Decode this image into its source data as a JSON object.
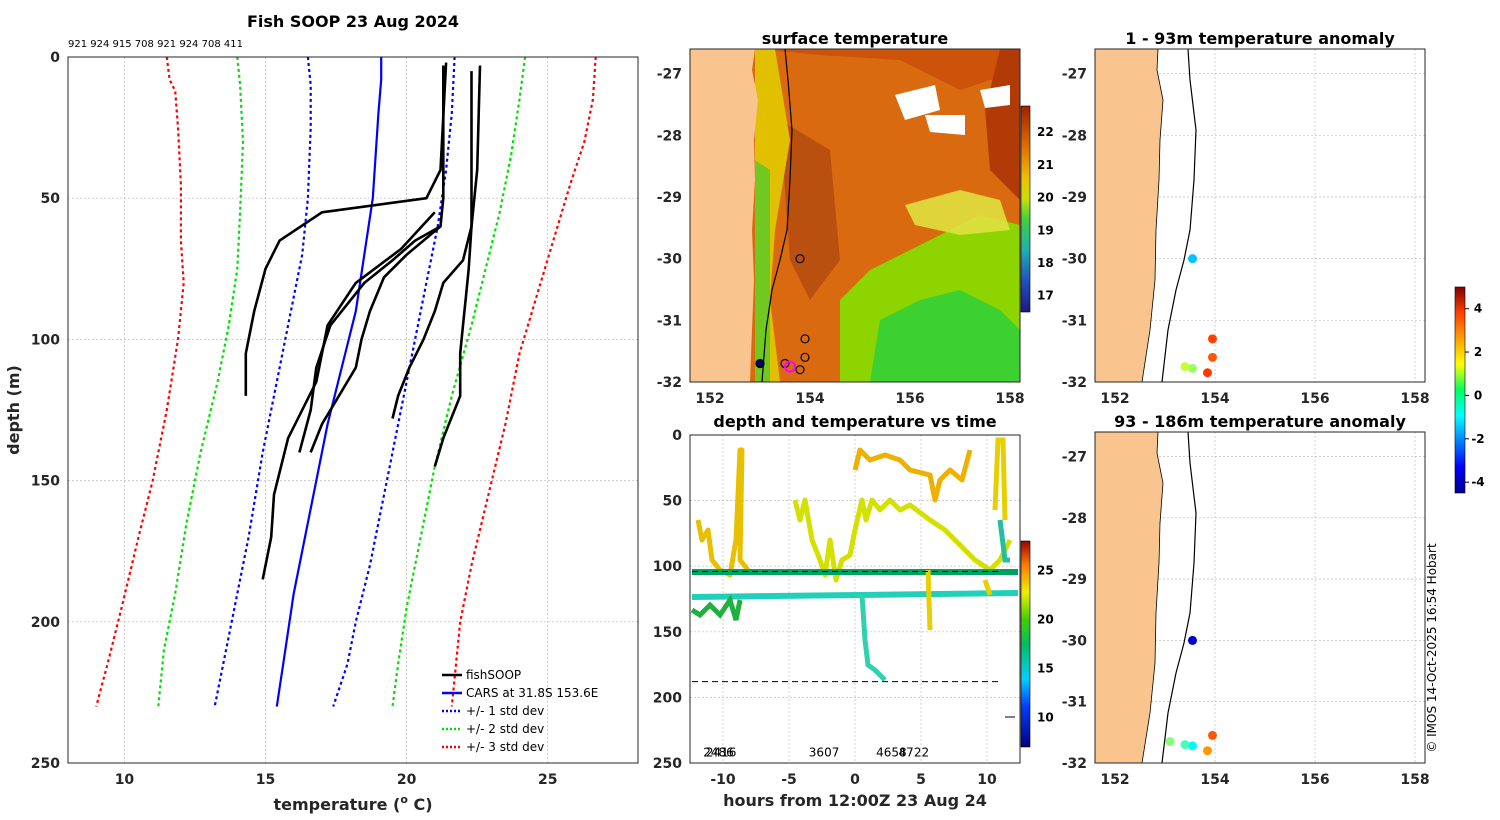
{
  "credit": "© IMOS 14-Oct-2025 16:54 Hobart",
  "chart_data": [
    {
      "id": "profile",
      "type": "line",
      "title": "Fish SOOP 23 Aug 2024",
      "subtitle": "921 924 915 708 921 924 708 411",
      "xlabel": "temperature (",
      "xlabel_sup": "o",
      "xlabel_end": " C)",
      "ylabel": "depth (m)",
      "xlim": [
        8,
        28.2
      ],
      "ylim": [
        0,
        250
      ],
      "xticks": [
        10,
        15,
        20,
        25
      ],
      "yticks": [
        0,
        50,
        100,
        150,
        200,
        250
      ],
      "legend": [
        "fishSOOP",
        "CARS at 31.8S 153.6E",
        "+/- 1 std dev",
        "+/- 2 std dev",
        "+/- 3 std dev"
      ],
      "series": [
        {
          "name": "CARS at 31.8S 153.6E",
          "color": "#0000ff",
          "dash": "",
          "points": [
            [
              19.1,
              0
            ],
            [
              19.1,
              8
            ],
            [
              19.0,
              20
            ],
            [
              18.9,
              35
            ],
            [
              18.8,
              50
            ],
            [
              18.5,
              70
            ],
            [
              18.2,
              90
            ],
            [
              17.7,
              110
            ],
            [
              17.2,
              130
            ],
            [
              16.8,
              150
            ],
            [
              16.4,
              170
            ],
            [
              16.0,
              190
            ],
            [
              15.7,
              210
            ],
            [
              15.4,
              230
            ]
          ]
        },
        {
          "name": "+1 std",
          "color": "#0000ff",
          "dash": "3,3",
          "points": [
            [
              21.7,
              0
            ],
            [
              21.6,
              20
            ],
            [
              21.4,
              40
            ],
            [
              21.1,
              60
            ],
            [
              20.8,
              75
            ],
            [
              20.4,
              95
            ],
            [
              19.9,
              120
            ],
            [
              19.3,
              150
            ],
            [
              18.7,
              180
            ],
            [
              18.2,
              200
            ],
            [
              17.9,
              215
            ],
            [
              17.4,
              230
            ]
          ]
        },
        {
          "name": "-1 std",
          "color": "#0000ff",
          "dash": "3,3",
          "points": [
            [
              16.5,
              0
            ],
            [
              16.6,
              10
            ],
            [
              16.6,
              25
            ],
            [
              16.5,
              50
            ],
            [
              16.3,
              70
            ],
            [
              15.9,
              90
            ],
            [
              15.4,
              115
            ],
            [
              14.9,
              140
            ],
            [
              14.4,
              170
            ],
            [
              13.9,
              195
            ],
            [
              13.5,
              215
            ],
            [
              13.2,
              230
            ]
          ]
        },
        {
          "name": "+2 std",
          "color": "#00e000",
          "dash": "3,3",
          "points": [
            [
              24.2,
              0
            ],
            [
              24.0,
              15
            ],
            [
              23.7,
              35
            ],
            [
              23.3,
              55
            ],
            [
              22.8,
              75
            ],
            [
              22.3,
              95
            ],
            [
              21.6,
              120
            ],
            [
              21.0,
              145
            ],
            [
              20.5,
              170
            ],
            [
              20.0,
              195
            ],
            [
              19.7,
              215
            ],
            [
              19.5,
              230
            ]
          ]
        },
        {
          "name": "-2 std",
          "color": "#00e000",
          "dash": "3,3",
          "points": [
            [
              14.0,
              0
            ],
            [
              14.1,
              10
            ],
            [
              14.2,
              30
            ],
            [
              14.1,
              55
            ],
            [
              14.0,
              75
            ],
            [
              13.7,
              95
            ],
            [
              13.3,
              115
            ],
            [
              12.7,
              140
            ],
            [
              12.2,
              165
            ],
            [
              11.8,
              190
            ],
            [
              11.4,
              210
            ],
            [
              11.2,
              230
            ]
          ]
        },
        {
          "name": "+3 std",
          "color": "#ff0000",
          "dash": "3,3",
          "points": [
            [
              26.7,
              0
            ],
            [
              26.6,
              15
            ],
            [
              26.3,
              30
            ],
            [
              25.8,
              45
            ],
            [
              25.2,
              65
            ],
            [
              24.6,
              85
            ],
            [
              24.0,
              105
            ],
            [
              23.5,
              130
            ],
            [
              22.9,
              155
            ],
            [
              22.3,
              180
            ],
            [
              21.9,
              200
            ],
            [
              21.7,
              220
            ],
            [
              21.6,
              230
            ]
          ]
        },
        {
          "name": "-3 std",
          "color": "#ff0000",
          "dash": "3,3",
          "points": [
            [
              11.5,
              0
            ],
            [
              11.6,
              8
            ],
            [
              11.8,
              12
            ],
            [
              11.9,
              25
            ],
            [
              12.0,
              45
            ],
            [
              12.0,
              65
            ],
            [
              12.1,
              80
            ],
            [
              11.9,
              100
            ],
            [
              11.5,
              125
            ],
            [
              11.0,
              150
            ],
            [
              10.5,
              170
            ],
            [
              9.9,
              195
            ],
            [
              9.4,
              215
            ],
            [
              9.0,
              230
            ]
          ]
        },
        {
          "name": "fishSOOP",
          "color": "#000000",
          "dash": "",
          "points": [
            [
              21.4,
              2
            ],
            [
              21.2,
              40
            ],
            [
              20.7,
              50
            ],
            [
              17.0,
              55
            ],
            [
              15.5,
              65
            ],
            [
              15.0,
              75
            ],
            [
              14.6,
              90
            ],
            [
              14.3,
              105
            ],
            [
              14.3,
              120
            ]
          ]
        },
        {
          "name": "fishSOOP",
          "color": "#000000",
          "dash": "",
          "points": [
            [
              21.3,
              3
            ],
            [
              21.3,
              50
            ],
            [
              21.2,
              60
            ],
            [
              20.3,
              65
            ],
            [
              19.5,
              72
            ],
            [
              18.5,
              80
            ],
            [
              17.3,
              95
            ],
            [
              16.8,
              110
            ],
            [
              16.6,
              125
            ],
            [
              16.2,
              140
            ]
          ]
        },
        {
          "name": "fishSOOP",
          "color": "#000000",
          "dash": "",
          "points": [
            [
              21.0,
              55
            ],
            [
              19.8,
              68
            ],
            [
              18.2,
              80
            ],
            [
              17.2,
              95
            ],
            [
              16.8,
              115
            ],
            [
              15.8,
              135
            ],
            [
              15.3,
              155
            ],
            [
              15.2,
              170
            ],
            [
              14.9,
              185
            ]
          ]
        },
        {
          "name": "fishSOOP",
          "color": "#000000",
          "dash": "",
          "points": [
            [
              21.2,
              60
            ],
            [
              20.0,
              70
            ],
            [
              19.2,
              78
            ],
            [
              18.7,
              90
            ],
            [
              18.4,
              100
            ],
            [
              18.2,
              110
            ],
            [
              17.6,
              120
            ],
            [
              17.0,
              130
            ],
            [
              16.6,
              140
            ]
          ]
        },
        {
          "name": "fishSOOP",
          "color": "#000000",
          "dash": "",
          "points": [
            [
              22.6,
              3
            ],
            [
              22.5,
              40
            ],
            [
              22.3,
              60
            ],
            [
              22.2,
              75
            ],
            [
              22.1,
              85
            ],
            [
              22.0,
              95
            ],
            [
              21.9,
              105
            ],
            [
              21.9,
              120
            ],
            [
              21.3,
              135
            ],
            [
              21.0,
              145
            ]
          ]
        },
        {
          "name": "fishSOOP",
          "color": "#000000",
          "dash": "",
          "points": [
            [
              22.3,
              5
            ],
            [
              22.3,
              60
            ],
            [
              22.0,
              72
            ],
            [
              21.3,
              80
            ],
            [
              21.0,
              90
            ],
            [
              20.6,
              100
            ],
            [
              20.1,
              110
            ],
            [
              19.7,
              120
            ],
            [
              19.5,
              128
            ]
          ]
        }
      ]
    },
    {
      "id": "sst_map",
      "type": "heatmap",
      "title": "surface temperature",
      "xlim": [
        151.6,
        158.2
      ],
      "ylim": [
        -32,
        -26.6
      ],
      "xticks": [
        152,
        154,
        156,
        158
      ],
      "yticks": [
        -27,
        -28,
        -29,
        -30,
        -31,
        -32
      ],
      "colorbar_ticks": [
        17,
        18,
        19,
        20,
        21,
        22
      ],
      "colorbar_range": [
        16.5,
        22.8
      ],
      "stations": [
        [
          153.8,
          -30.0
        ],
        [
          153.9,
          -31.3
        ],
        [
          153.9,
          -31.6
        ],
        [
          153.8,
          -31.8
        ],
        [
          153.5,
          -31.7
        ],
        [
          153.0,
          -31.7
        ]
      ],
      "current_position": [
        153.6,
        -31.75
      ]
    },
    {
      "id": "depth_time",
      "type": "scatter",
      "title": "depth and temperature vs time",
      "xlabel": "hours from 12:00Z 23 Aug 24",
      "xlim": [
        -12.5,
        12.5
      ],
      "ylim": [
        0,
        250
      ],
      "xticks": [
        -10,
        -5,
        0,
        5,
        10
      ],
      "yticks": [
        0,
        50,
        100,
        150,
        200,
        250
      ],
      "colorbar_ticks": [
        10,
        15,
        20,
        25
      ],
      "colorbar_range": [
        7,
        28
      ],
      "dashed_lines_depth": [
        104,
        188
      ],
      "markers": [
        "2486",
        "2416",
        "3607",
        "4658",
        "4722"
      ],
      "marker_hours": [
        -11.5,
        -11.3,
        -3.5,
        1.6,
        3.3
      ]
    },
    {
      "id": "anom_upper",
      "type": "scatter",
      "title": "1 - 93m temperature anomaly",
      "xlim": [
        151.6,
        158.2
      ],
      "ylim": [
        -32,
        -26.6
      ],
      "xticks": [
        152,
        154,
        156,
        158
      ],
      "yticks": [
        -27,
        -28,
        -29,
        -30,
        -31,
        -32
      ],
      "points": [
        {
          "lon": 153.55,
          "lat": -30.0,
          "anom": -1.5
        },
        {
          "lon": 153.95,
          "lat": -31.3,
          "anom": 3.2
        },
        {
          "lon": 153.95,
          "lat": -31.6,
          "anom": 3.0
        },
        {
          "lon": 153.85,
          "lat": -31.85,
          "anom": 3.3
        },
        {
          "lon": 153.55,
          "lat": -31.78,
          "anom": 0.5
        },
        {
          "lon": 153.4,
          "lat": -31.75,
          "anom": 0.9
        }
      ]
    },
    {
      "id": "anom_lower",
      "type": "scatter",
      "title": "93 - 186m temperature anomaly",
      "xlim": [
        151.6,
        158.2
      ],
      "ylim": [
        -32,
        -26.6
      ],
      "xticks": [
        152,
        154,
        156,
        158
      ],
      "yticks": [
        -27,
        -28,
        -29,
        -30,
        -31,
        -32
      ],
      "points": [
        {
          "lon": 153.55,
          "lat": -30.0,
          "anom": -3.8
        },
        {
          "lon": 153.95,
          "lat": -31.55,
          "anom": 3.0
        },
        {
          "lon": 153.55,
          "lat": -31.72,
          "anom": -1.0
        },
        {
          "lon": 153.4,
          "lat": -31.7,
          "anom": -0.3
        },
        {
          "lon": 153.1,
          "lat": -31.65,
          "anom": 0.3
        },
        {
          "lon": 153.85,
          "lat": -31.8,
          "anom": 2.4
        }
      ],
      "colorbar_ticks": [
        4,
        2,
        0,
        -2,
        -4
      ],
      "colorbar_range": [
        -4.5,
        5
      ]
    }
  ]
}
